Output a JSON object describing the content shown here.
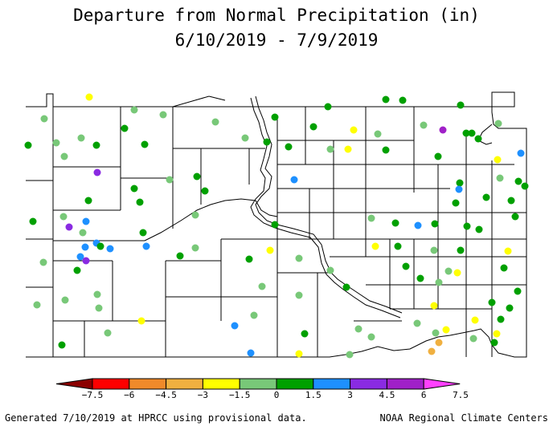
{
  "title_line1": "Departure from Normal Precipitation (in)",
  "title_line2": "6/10/2019 - 7/9/2019",
  "footer_left": "Generated 7/10/2019 at HPRCC using provisional data.",
  "footer_right": "NOAA Regional Climate Centers",
  "legend": {
    "ticks": [
      "−7.5",
      "−6",
      "−4.5",
      "−3",
      "−1.5",
      "0",
      "1.5",
      "3",
      "4.5",
      "6",
      "7.5"
    ],
    "colors": [
      "#8b0000",
      "#ff0000",
      "#f08a2a",
      "#f0b040",
      "#ffff00",
      "#78c878",
      "#00a000",
      "#1e90ff",
      "#8a2be2",
      "#a020c8",
      "#ff40ff"
    ]
  }
}
